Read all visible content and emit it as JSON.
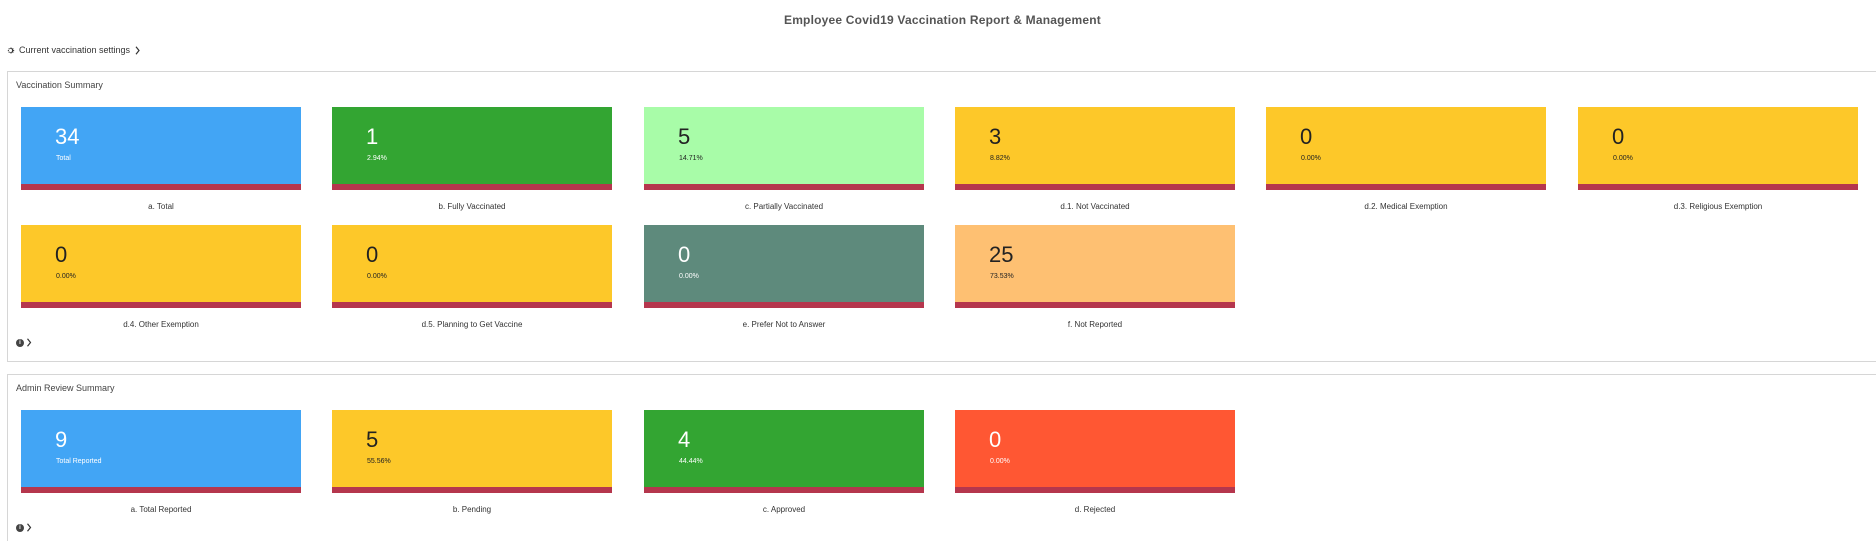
{
  "page": {
    "title": "Employee Covid19 Vaccination Report & Management"
  },
  "settings_link": {
    "label": "Current vaccination settings",
    "icon": "gear-icon"
  },
  "colors": {
    "blue": "#42a5f5",
    "green": "#33a532",
    "light_green": "#a8fca8",
    "yellow": "#fdc829",
    "teal_gray": "#5e8a7c",
    "peach": "#fec072",
    "red": "#ff5733",
    "tile_border": "#b5364d"
  },
  "vaccination_summary": {
    "title": "Vaccination Summary",
    "tiles": [
      {
        "number": "34",
        "sub": "Total",
        "label": "a.  Total",
        "color": "blue"
      },
      {
        "number": "1",
        "sub": "2.94%",
        "label": "b.  Fully Vaccinated",
        "color": "green"
      },
      {
        "number": "5",
        "sub": "14.71%",
        "label": "c.  Partially Vaccinated",
        "color": "light_green"
      },
      {
        "number": "3",
        "sub": "8.82%",
        "label": "d.1.  Not Vaccinated",
        "color": "yellow"
      },
      {
        "number": "0",
        "sub": "0.00%",
        "label": "d.2.  Medical Exemption",
        "color": "yellow"
      },
      {
        "number": "0",
        "sub": "0.00%",
        "label": "d.3.  Religious Exemption",
        "color": "yellow"
      },
      {
        "number": "0",
        "sub": "0.00%",
        "label": "d.4.  Other Exemption",
        "color": "yellow"
      },
      {
        "number": "0",
        "sub": "0.00%",
        "label": "d.5.  Planning to Get Vaccine",
        "color": "yellow"
      },
      {
        "number": "0",
        "sub": "0.00%",
        "label": "e.  Prefer Not to Answer",
        "color": "teal_gray"
      },
      {
        "number": "25",
        "sub": "73.53%",
        "label": "f.  Not Reported",
        "color": "peach"
      }
    ]
  },
  "admin_review_summary": {
    "title": "Admin Review Summary",
    "tiles": [
      {
        "number": "9",
        "sub": "Total Reported",
        "label": "a.  Total Reported",
        "color": "blue"
      },
      {
        "number": "5",
        "sub": "55.56%",
        "label": "b.  Pending",
        "color": "yellow"
      },
      {
        "number": "4",
        "sub": "44.44%",
        "label": "c.  Approved",
        "color": "green"
      },
      {
        "number": "0",
        "sub": "0.00%",
        "label": "d.  Rejected",
        "color": "red"
      }
    ]
  }
}
